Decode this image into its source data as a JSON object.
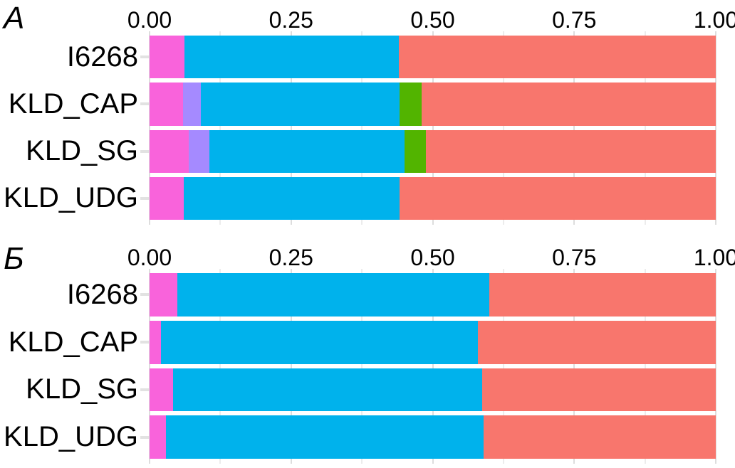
{
  "figure": {
    "background": "#ffffff",
    "panel_count": 2
  },
  "palette": {
    "pink": "#f963db",
    "purple": "#a58aff",
    "blue": "#00b2ec",
    "green": "#52b400",
    "red": "#f8766d",
    "gridline_major": "#dddddd",
    "gridline_minor": "#ececec",
    "axis_tick": "#e2e2e2",
    "text": "#000000"
  },
  "chart_data": [
    {
      "type": "bar",
      "orientation": "horizontal",
      "stacked": true,
      "panel_label": "A",
      "title": "",
      "xlabel": "",
      "ylabel": "",
      "xlim": [
        0,
        1
      ],
      "axis_position": "top",
      "grid": true,
      "grid_step": 0.125,
      "legend": false,
      "categories": [
        "I6268",
        "KLD_CAP",
        "KLD_SG",
        "KLD_UDG"
      ],
      "x_ticks": [
        {
          "value": 0.0,
          "label": "0.00"
        },
        {
          "value": 0.25,
          "label": "0.25"
        },
        {
          "value": 0.5,
          "label": "0.50"
        },
        {
          "value": 0.75,
          "label": "0.75"
        },
        {
          "value": 1.0,
          "label": "1.00"
        }
      ],
      "series": [
        {
          "name": "pink",
          "color": "#f963db",
          "values": [
            0.062,
            0.059,
            0.069,
            0.061
          ]
        },
        {
          "name": "purple",
          "color": "#a58aff",
          "values": [
            0,
            0.031,
            0.037,
            0
          ]
        },
        {
          "name": "blue",
          "color": "#00b2ec",
          "values": [
            0.378,
            0.352,
            0.344,
            0.381
          ]
        },
        {
          "name": "green",
          "color": "#52b400",
          "values": [
            0,
            0.038,
            0.038,
            0
          ]
        },
        {
          "name": "red",
          "color": "#f8766d",
          "values": [
            0.56,
            0.52,
            0.512,
            0.558
          ]
        }
      ]
    },
    {
      "type": "bar",
      "orientation": "horizontal",
      "stacked": true,
      "panel_label": "Б",
      "title": "",
      "xlabel": "",
      "ylabel": "",
      "xlim": [
        0,
        1
      ],
      "axis_position": "top",
      "grid": true,
      "grid_step": 0.125,
      "legend": false,
      "categories": [
        "I6268",
        "KLD_CAP",
        "KLD_SG",
        "KLD_UDG"
      ],
      "x_ticks": [
        {
          "value": 0.0,
          "label": "0.00"
        },
        {
          "value": 0.25,
          "label": "0.25"
        },
        {
          "value": 0.5,
          "label": "0.50"
        },
        {
          "value": 0.75,
          "label": "0.75"
        },
        {
          "value": 1.0,
          "label": "1.00"
        }
      ],
      "series": [
        {
          "name": "pink",
          "color": "#f963db",
          "values": [
            0.049,
            0.02,
            0.042,
            0.029
          ]
        },
        {
          "name": "purple",
          "color": "#a58aff",
          "values": [
            0,
            0,
            0,
            0
          ]
        },
        {
          "name": "blue",
          "color": "#00b2ec",
          "values": [
            0.551,
            0.56,
            0.546,
            0.561
          ]
        },
        {
          "name": "green",
          "color": "#52b400",
          "values": [
            0,
            0,
            0,
            0
          ]
        },
        {
          "name": "red",
          "color": "#f8766d",
          "values": [
            0.4,
            0.42,
            0.412,
            0.41
          ]
        }
      ]
    }
  ]
}
